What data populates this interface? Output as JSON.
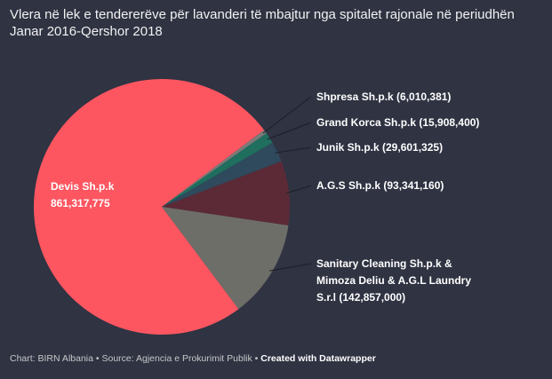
{
  "chart_data": {
    "type": "pie",
    "title": "Vlera në lek e tendererëve për lavanderi të mbajtur nga spitalet rajonale në periudhën Janar 2016-Qershor 2018",
    "slices": [
      {
        "label": "Shpresa Sh.p.k",
        "value": 6010381,
        "value_text": "6,010,381",
        "color": "#7a7a78"
      },
      {
        "label": "Grand Korca Sh.p.k",
        "value": 15908400,
        "value_text": "15,908,400",
        "color": "#1f6e5e"
      },
      {
        "label": "Junik Sh.p.k",
        "value": 29601325,
        "value_text": "29,601,325",
        "color": "#2e4a5c"
      },
      {
        "label": "A.G.S Sh.p.k",
        "value": 93341160,
        "value_text": "93,341,160",
        "color": "#5c2a37"
      },
      {
        "label": "Sanitary Cleaning Sh.p.k & Mimoza Deliu & A.G.L Laundry S.r.l",
        "label_lines": [
          "Sanitary Cleaning Sh.p.k &",
          "Mimoza Deliu & A.G.L Laundry",
          "S.r.l (142,857,000)"
        ],
        "value": 142857000,
        "value_text": "142,857,000",
        "color": "#6e6e69"
      },
      {
        "label": "Devis Sh.p.k",
        "value": 861317775,
        "value_text": "861,317,775",
        "color": "#fd5660"
      }
    ]
  },
  "footer": {
    "chart_credit": "Chart: BIRN Albania",
    "source": "Source: Agjencia e Prokurimit Publik",
    "created_with": "Created with Datawrapper",
    "separator": " • "
  }
}
